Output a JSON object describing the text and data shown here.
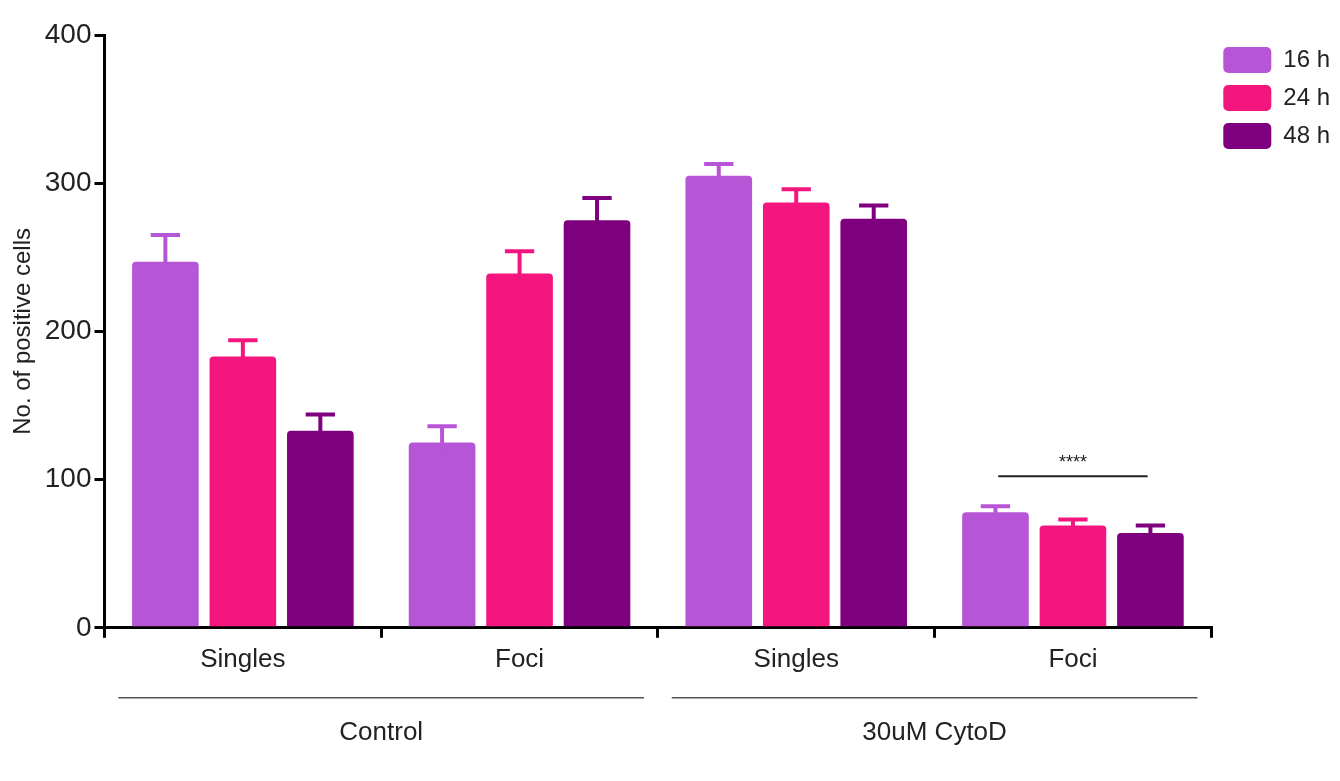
{
  "chart_data": {
    "type": "bar",
    "ylabel": "No. of positive cells",
    "categories": [
      "Singles",
      "Foci",
      "Singles",
      "Foci"
    ],
    "series": [
      {
        "name": "16 h",
        "color": "#b655d6",
        "values": [
          247,
          125,
          305,
          78
        ],
        "errors": [
          18,
          11,
          8,
          4
        ]
      },
      {
        "name": "24 h",
        "color": "#f5157f",
        "values": [
          183,
          239,
          287,
          69
        ],
        "errors": [
          11,
          15,
          9,
          4
        ]
      },
      {
        "name": "48 h",
        "color": "#7f007f",
        "values": [
          133,
          275,
          276,
          64
        ],
        "errors": [
          11,
          15,
          9,
          5
        ]
      }
    ],
    "ylim": [
      0,
      400
    ],
    "yticks": [
      0,
      100,
      200,
      300,
      400
    ],
    "grid": false,
    "legend": "right",
    "annotations": [
      "****",
      "Control",
      "30uM CytoD"
    ]
  }
}
